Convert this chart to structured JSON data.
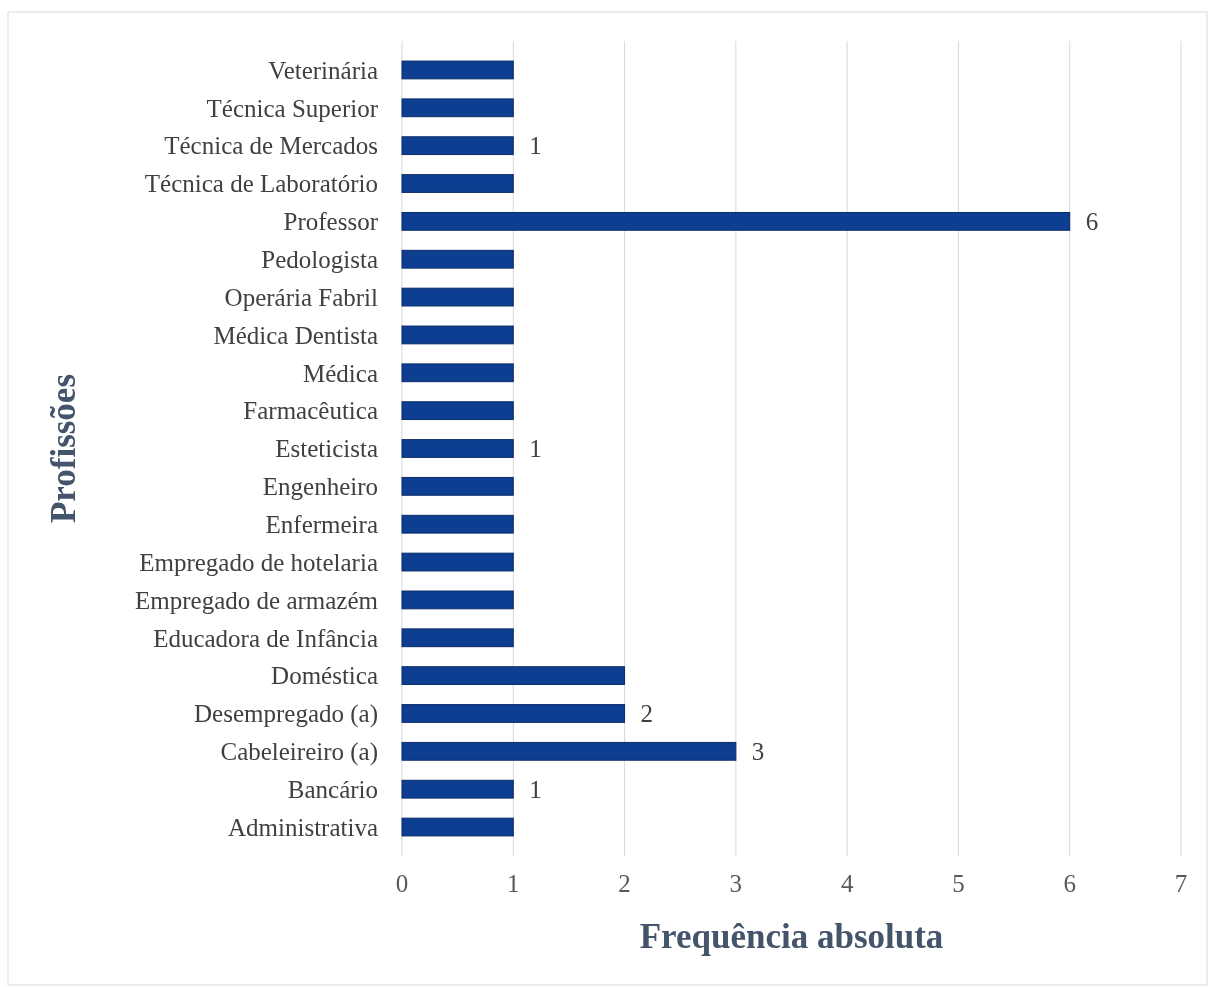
{
  "chart_data": {
    "type": "bar",
    "orientation": "horizontal",
    "xlabel": "Frequência absoluta",
    "ylabel": "Profissões",
    "categories": [
      "Veterinária",
      "Técnica Superior",
      "Técnica de Mercados",
      "Técnica de Laboratório",
      "Professor",
      "Pedologista",
      "Operária Fabril",
      "Médica Dentista",
      "Médica",
      "Farmacêutica",
      "Esteticista",
      "Engenheiro",
      "Enfermeira",
      "Empregado de hotelaria",
      "Empregado de armazém",
      "Educadora de Infância",
      "Doméstica",
      "Desempregado (a)",
      "Cabeleireiro (a)",
      "Bancário",
      "Administrativa"
    ],
    "values": [
      1,
      1,
      1,
      1,
      6,
      1,
      1,
      1,
      1,
      1,
      1,
      1,
      1,
      1,
      1,
      1,
      2,
      2,
      3,
      1,
      1
    ],
    "value_labels": [
      null,
      null,
      "1",
      null,
      "6",
      null,
      null,
      null,
      null,
      null,
      "1",
      null,
      null,
      null,
      null,
      null,
      null,
      "2",
      "3",
      "1",
      null
    ],
    "color": "#0e3e91",
    "xlim": [
      0,
      7
    ],
    "xticks": [
      0,
      1,
      2,
      3,
      4,
      5,
      6,
      7
    ],
    "grid": "x"
  }
}
